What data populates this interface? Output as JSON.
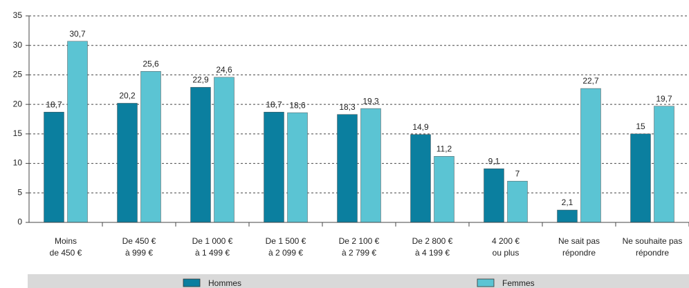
{
  "chart_data": {
    "type": "bar",
    "categories": [
      "Moins\nde 450 €",
      "De 450 €\nà 999 €",
      "De 1 000 €\nà 1 499 €",
      "De 1 500 €\nà 2 099 €",
      "De 2 100 €\nà 2 799 €",
      "De 2 800 €\nà 4 199 €",
      "4 200 €\nou plus",
      "Ne sait pas\nrépondre",
      "Ne souhaite pas\nrépondre"
    ],
    "series": [
      {
        "name": "Hommes",
        "color": "#0b7f9f",
        "values": [
          18.7,
          20.2,
          22.9,
          18.7,
          18.3,
          14.9,
          9.1,
          2.1,
          15
        ],
        "value_labels": [
          "18,7",
          "20,2",
          "22,9",
          "18,7",
          "18,3",
          "14,9",
          "9,1",
          "2,1",
          "15"
        ]
      },
      {
        "name": "Femmes",
        "color": "#5bc4d3",
        "values": [
          30.7,
          25.6,
          24.6,
          18.6,
          19.3,
          11.2,
          7,
          22.7,
          19.7
        ],
        "value_labels": [
          "30,7",
          "25,6",
          "24,6",
          "18,6",
          "19,3",
          "11,2",
          "7",
          "22,7",
          "19,7"
        ]
      }
    ],
    "ylim": [
      0,
      35
    ],
    "yticks": [
      0,
      5,
      10,
      15,
      20,
      25,
      30,
      35
    ],
    "grid": true,
    "legend": "bottom"
  }
}
